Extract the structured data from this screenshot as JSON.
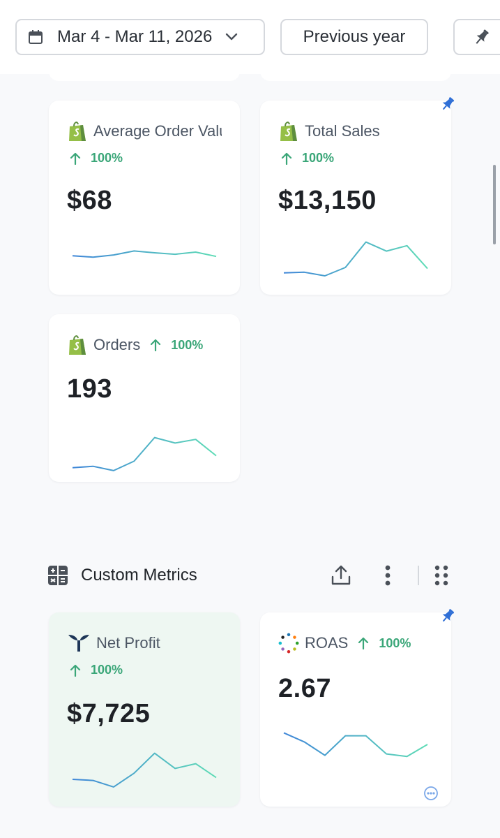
{
  "toolbar": {
    "date_range": "Mar 4 - Mar 11, 2026",
    "compare_label": "Previous year"
  },
  "cards": {
    "aov": {
      "title": "Average Order Value",
      "change": "100%",
      "value": "$68",
      "spark": [
        0.42,
        0.38,
        0.44,
        0.55,
        0.5,
        0.46,
        0.52,
        0.4
      ]
    },
    "total_sales": {
      "title": "Total Sales",
      "change": "100%",
      "value": "$13,150",
      "spark": [
        0.1,
        0.12,
        0.02,
        0.25,
        0.95,
        0.7,
        0.85,
        0.22
      ]
    },
    "orders": {
      "title": "Orders",
      "change": "100%",
      "value": "193",
      "spark": [
        0.12,
        0.16,
        0.04,
        0.3,
        0.95,
        0.8,
        0.9,
        0.45
      ]
    },
    "net_profit": {
      "title": "Net Profit",
      "change": "100%",
      "value": "$7,725",
      "spark": [
        0.25,
        0.22,
        0.04,
        0.42,
        0.97,
        0.55,
        0.68,
        0.3
      ]
    },
    "roas": {
      "title": "ROAS",
      "change": "100%",
      "value": "2.67",
      "spark": [
        0.8,
        0.55,
        0.18,
        0.72,
        0.72,
        0.22,
        0.15,
        0.48
      ]
    }
  },
  "section": {
    "title": "Custom Metrics"
  },
  "colors": {
    "positive": "#3aa678",
    "spark_start": "#3f86d8",
    "spark_end": "#5fdcb6",
    "pin": "#2f6fd6"
  }
}
